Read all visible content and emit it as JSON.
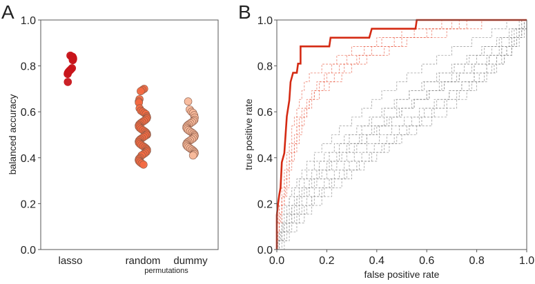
{
  "chart_data": [
    {
      "panel_label": "A",
      "type": "scatter",
      "ylabel": "balanced accuracy",
      "ylim": [
        0,
        1
      ],
      "yticks": [
        "0.0",
        "0.2",
        "0.4",
        "0.6",
        "0.8",
        "1.0"
      ],
      "xlabel_sub": "permutations",
      "grid": false,
      "groups": [
        {
          "name": "lasso",
          "color": "#c8151b",
          "values": [
            0.845,
            0.84,
            0.84,
            0.835,
            0.83,
            0.825,
            0.79,
            0.785,
            0.78,
            0.775,
            0.77,
            0.765,
            0.73
          ]
        },
        {
          "name": "random",
          "color": "#f26a42",
          "values": [
            0.7,
            0.695,
            0.69,
            0.655,
            0.645,
            0.64,
            0.615,
            0.605,
            0.6,
            0.595,
            0.59,
            0.58,
            0.575,
            0.57,
            0.565,
            0.56,
            0.555,
            0.55,
            0.545,
            0.54,
            0.535,
            0.53,
            0.525,
            0.52,
            0.515,
            0.51,
            0.505,
            0.5,
            0.5,
            0.495,
            0.49,
            0.485,
            0.48,
            0.475,
            0.47,
            0.465,
            0.46,
            0.455,
            0.45,
            0.445,
            0.44,
            0.435,
            0.43,
            0.425,
            0.42,
            0.415,
            0.41,
            0.4,
            0.395,
            0.39,
            0.385,
            0.38,
            0.375,
            0.37
          ]
        },
        {
          "name": "dummy",
          "color": "#f8b99b",
          "values": [
            0.645,
            0.61,
            0.6,
            0.595,
            0.585,
            0.575,
            0.565,
            0.56,
            0.555,
            0.55,
            0.545,
            0.54,
            0.535,
            0.53,
            0.525,
            0.52,
            0.515,
            0.51,
            0.505,
            0.5,
            0.495,
            0.49,
            0.485,
            0.48,
            0.475,
            0.47,
            0.465,
            0.46,
            0.455,
            0.45,
            0.445,
            0.44,
            0.435,
            0.43,
            0.425,
            0.42,
            0.415,
            0.41
          ]
        }
      ]
    },
    {
      "panel_label": "B",
      "type": "line",
      "xlabel": "false positive rate",
      "ylabel": "true positive rate",
      "xlim": [
        0,
        1
      ],
      "ylim": [
        0,
        1
      ],
      "xticks": [
        "0.0",
        "0.2",
        "0.4",
        "0.6",
        "0.8",
        "1.0"
      ],
      "yticks": [
        "0.0",
        "0.2",
        "0.4",
        "0.6",
        "0.8",
        "1.0"
      ],
      "grid": false,
      "main_curve": {
        "color": "#d42a13",
        "points": [
          [
            0,
            0
          ],
          [
            0,
            0.15
          ],
          [
            0.005,
            0.2
          ],
          [
            0.01,
            0.24
          ],
          [
            0.015,
            0.27
          ],
          [
            0.02,
            0.38
          ],
          [
            0.03,
            0.42
          ],
          [
            0.035,
            0.5
          ],
          [
            0.04,
            0.58
          ],
          [
            0.05,
            0.65
          ],
          [
            0.055,
            0.73
          ],
          [
            0.065,
            0.77
          ],
          [
            0.08,
            0.77
          ],
          [
            0.085,
            0.81
          ],
          [
            0.095,
            0.81
          ],
          [
            0.095,
            0.885
          ],
          [
            0.21,
            0.885
          ],
          [
            0.215,
            0.923
          ],
          [
            0.37,
            0.923
          ],
          [
            0.38,
            0.962
          ],
          [
            0.555,
            0.962
          ],
          [
            0.56,
            1
          ],
          [
            1,
            1
          ]
        ]
      },
      "tpr_step": 0.03846,
      "red_dashed_curves_fpr_at_each_tp": [
        [
          0,
          0,
          0,
          0.01,
          0.01,
          0.02,
          0.02,
          0.03,
          0.03,
          0.04,
          0.04,
          0.05,
          0.06,
          0.06,
          0.07,
          0.08,
          0.09,
          0.1,
          0.11,
          0.13,
          0.18,
          0.24,
          0.3,
          0.42,
          0.6,
          0.73
        ],
        [
          0,
          0,
          0.01,
          0.01,
          0.02,
          0.02,
          0.03,
          0.04,
          0.04,
          0.05,
          0.05,
          0.06,
          0.07,
          0.08,
          0.08,
          0.1,
          0.12,
          0.14,
          0.16,
          0.2,
          0.25,
          0.33,
          0.43,
          0.5,
          0.68,
          0.82
        ],
        [
          0,
          0.005,
          0.01,
          0.015,
          0.02,
          0.03,
          0.035,
          0.04,
          0.05,
          0.05,
          0.06,
          0.07,
          0.08,
          0.08,
          0.09,
          0.11,
          0.13,
          0.15,
          0.19,
          0.23,
          0.27,
          0.32,
          0.38,
          0.47,
          0.55,
          0.7
        ],
        [
          0,
          0,
          0,
          0.005,
          0.01,
          0.02,
          0.03,
          0.03,
          0.04,
          0.05,
          0.06,
          0.07,
          0.08,
          0.09,
          0.1,
          0.12,
          0.14,
          0.17,
          0.21,
          0.26,
          0.3,
          0.36,
          0.45,
          0.52,
          0.62,
          0.76
        ],
        [
          0,
          0,
          0.01,
          0.02,
          0.02,
          0.03,
          0.04,
          0.05,
          0.05,
          0.06,
          0.07,
          0.08,
          0.09,
          0.1,
          0.11,
          0.12,
          0.13,
          0.15,
          0.17,
          0.19,
          0.22,
          0.28,
          0.35,
          0.4,
          0.5,
          0.66
        ]
      ],
      "gray_dashed_curves_fpr_at_each_tp": [
        [
          0,
          0.01,
          0.02,
          0.03,
          0.04,
          0.05,
          0.06,
          0.08,
          0.1,
          0.12,
          0.15,
          0.18,
          0.22,
          0.25,
          0.3,
          0.34,
          0.38,
          0.42,
          0.48,
          0.52,
          0.58,
          0.64,
          0.7,
          0.78,
          0.86,
          0.92
        ],
        [
          0,
          0.02,
          0.04,
          0.06,
          0.08,
          0.1,
          0.13,
          0.16,
          0.2,
          0.24,
          0.28,
          0.32,
          0.36,
          0.41,
          0.46,
          0.5,
          0.55,
          0.6,
          0.65,
          0.7,
          0.75,
          0.8,
          0.86,
          0.9,
          0.95,
          0.98
        ],
        [
          0.01,
          0.03,
          0.05,
          0.07,
          0.1,
          0.14,
          0.18,
          0.22,
          0.27,
          0.32,
          0.37,
          0.42,
          0.47,
          0.52,
          0.57,
          0.62,
          0.67,
          0.72,
          0.77,
          0.81,
          0.86,
          0.9,
          0.94,
          0.97,
          0.99,
          1.0
        ],
        [
          0,
          0.01,
          0.01,
          0.02,
          0.03,
          0.05,
          0.07,
          0.09,
          0.12,
          0.15,
          0.19,
          0.23,
          0.27,
          0.32,
          0.37,
          0.42,
          0.47,
          0.53,
          0.58,
          0.64,
          0.7,
          0.76,
          0.82,
          0.88,
          0.93,
          0.97
        ],
        [
          0.02,
          0.04,
          0.06,
          0.09,
          0.12,
          0.15,
          0.19,
          0.23,
          0.28,
          0.33,
          0.38,
          0.43,
          0.48,
          0.53,
          0.58,
          0.63,
          0.68,
          0.73,
          0.78,
          0.83,
          0.87,
          0.91,
          0.94,
          0.96,
          0.98,
          0.99
        ],
        [
          0,
          0.01,
          0.03,
          0.04,
          0.06,
          0.08,
          0.1,
          0.13,
          0.16,
          0.2,
          0.24,
          0.28,
          0.33,
          0.38,
          0.43,
          0.48,
          0.54,
          0.6,
          0.66,
          0.72,
          0.78,
          0.84,
          0.89,
          0.93,
          0.96,
          0.99
        ],
        [
          0.01,
          0.02,
          0.03,
          0.05,
          0.07,
          0.09,
          0.12,
          0.15,
          0.18,
          0.22,
          0.26,
          0.31,
          0.36,
          0.4,
          0.45,
          0.5,
          0.55,
          0.61,
          0.67,
          0.73,
          0.79,
          0.85,
          0.9,
          0.94,
          0.97,
          1.0
        ],
        [
          0,
          0.02,
          0.05,
          0.08,
          0.11,
          0.14,
          0.17,
          0.21,
          0.25,
          0.29,
          0.34,
          0.39,
          0.44,
          0.49,
          0.54,
          0.59,
          0.64,
          0.69,
          0.74,
          0.79,
          0.84,
          0.88,
          0.92,
          0.95,
          0.98,
          1.0
        ],
        [
          0.005,
          0.015,
          0.025,
          0.04,
          0.06,
          0.08,
          0.11,
          0.14,
          0.17,
          0.21,
          0.25,
          0.29,
          0.34,
          0.39,
          0.44,
          0.49,
          0.55,
          0.61,
          0.67,
          0.73,
          0.79,
          0.85,
          0.9,
          0.94,
          0.97,
          0.99
        ],
        [
          0.03,
          0.05,
          0.08,
          0.11,
          0.14,
          0.18,
          0.22,
          0.26,
          0.3,
          0.35,
          0.4,
          0.45,
          0.5,
          0.56,
          0.62,
          0.68,
          0.72,
          0.76,
          0.8,
          0.84,
          0.88,
          0.91,
          0.94,
          0.96,
          0.98,
          1.0
        ],
        [
          0,
          0.01,
          0.02,
          0.04,
          0.05,
          0.07,
          0.09,
          0.11,
          0.14,
          0.17,
          0.21,
          0.25,
          0.29,
          0.34,
          0.38,
          0.43,
          0.48,
          0.53,
          0.59,
          0.65,
          0.71,
          0.77,
          0.83,
          0.89,
          0.94,
          0.98
        ],
        [
          0.01,
          0.03,
          0.04,
          0.06,
          0.09,
          0.12,
          0.15,
          0.19,
          0.23,
          0.27,
          0.31,
          0.36,
          0.41,
          0.46,
          0.51,
          0.57,
          0.63,
          0.69,
          0.74,
          0.79,
          0.84,
          0.88,
          0.92,
          0.95,
          0.97,
          0.99
        ]
      ]
    }
  ]
}
